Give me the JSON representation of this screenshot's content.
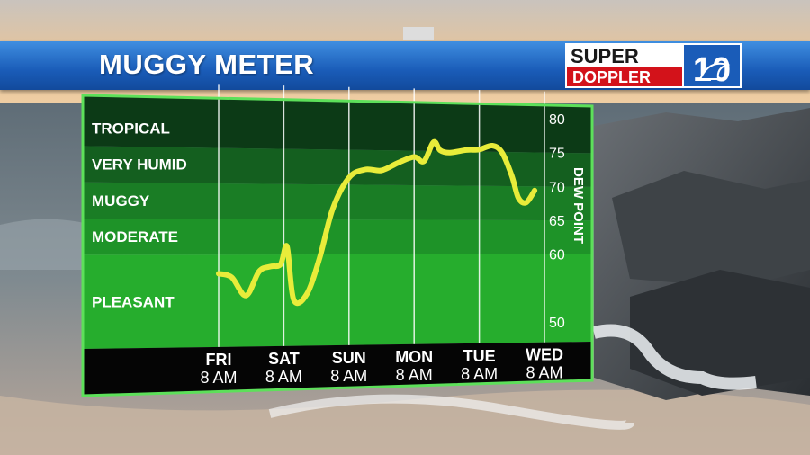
{
  "header": {
    "title": "MUGGY METER",
    "logo_top": "SUPER",
    "logo_bottom": "DOPPLER",
    "logo_number": "10"
  },
  "colors": {
    "header_blue": "#1a5cb8",
    "line": "#e8ec3a",
    "band_dark": "#0b2e12",
    "band_green": "#1faa2a",
    "logo_red": "#d3121a"
  },
  "chart_data": {
    "type": "line",
    "title": "MUGGY METER",
    "ylabel": "DEW POINT",
    "ylim": [
      47,
      82
    ],
    "y_ticks": [
      "80",
      "75",
      "70",
      "65",
      "60",
      "50"
    ],
    "y_tick_values": [
      80,
      75,
      70,
      65,
      60,
      50
    ],
    "categories": [
      {
        "day": "FRI",
        "time": "8 AM"
      },
      {
        "day": "SAT",
        "time": "8 AM"
      },
      {
        "day": "SUN",
        "time": "8 AM"
      },
      {
        "day": "MON",
        "time": "8 AM"
      },
      {
        "day": "TUE",
        "time": "8 AM"
      },
      {
        "day": "WED",
        "time": "8 AM"
      }
    ],
    "bands": [
      {
        "label": "TROPICAL",
        "from": 75,
        "to": 80
      },
      {
        "label": "VERY HUMID",
        "from": 70,
        "to": 75
      },
      {
        "label": "MUGGY",
        "from": 65,
        "to": 70
      },
      {
        "label": "MODERATE",
        "from": 60,
        "to": 65
      },
      {
        "label": "PLEASANT",
        "from": 47,
        "to": 60
      }
    ],
    "series": [
      {
        "x": [
          0,
          0.2,
          0.42,
          0.62,
          0.8,
          0.95,
          1.05,
          1.15,
          1.35,
          1.55,
          1.75,
          2.0,
          2.25,
          2.5,
          2.75,
          3.0,
          3.15,
          3.3,
          3.4,
          3.55,
          3.8,
          4.0,
          4.2,
          4.35,
          4.5,
          4.6,
          4.72,
          4.85
        ],
        "values": [
          57.3,
          56.8,
          54.2,
          57.6,
          58.3,
          58.6,
          61.1,
          53.6,
          54.3,
          59.5,
          66.5,
          71.0,
          72.2,
          72.1,
          73.2,
          74.1,
          73.5,
          76.3,
          75.1,
          74.8,
          75.2,
          75.3,
          75.9,
          74.9,
          71.5,
          68.3,
          67.6,
          69.4
        ]
      }
    ]
  }
}
